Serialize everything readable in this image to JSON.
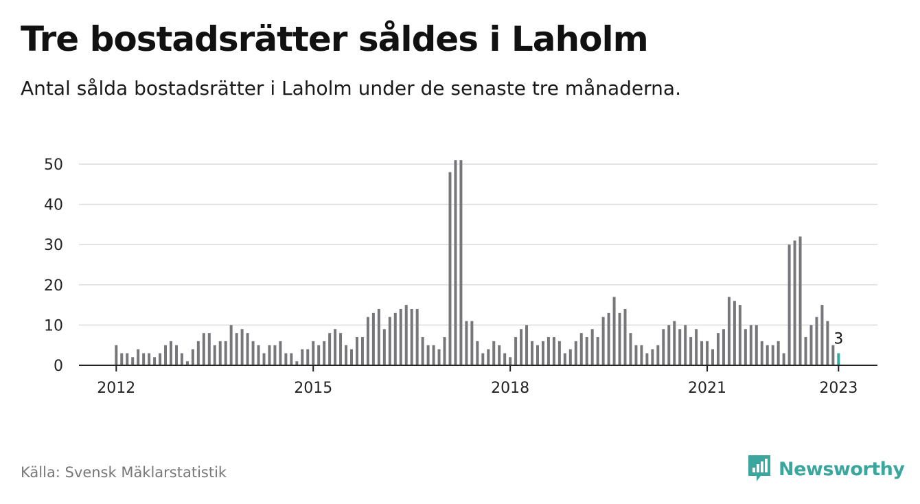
{
  "header": {
    "title": "Tre bostadsrätter såldes i Laholm",
    "subtitle": "Antal sålda bostadsrätter i Laholm under de senaste tre månaderna."
  },
  "footer": {
    "source": "Källa: Svensk Mäklarstatistik",
    "brand": "Newsworthy"
  },
  "colors": {
    "bar": "#77767b",
    "highlight": "#35a99e",
    "grid": "#dcdcdc",
    "axis": "#222222",
    "brand": "#3aa69e"
  },
  "icons": {
    "logo": "bar-chart-speech-bubble-icon"
  },
  "chart_data": {
    "type": "bar",
    "x_start": "2012-01",
    "x_labels": [
      "2012",
      "2015",
      "2018",
      "2021",
      "2023"
    ],
    "yticks": [
      0,
      10,
      20,
      30,
      40,
      50
    ],
    "ylim": [
      0,
      50
    ],
    "grid": true,
    "highlight_last": true,
    "last_value_label": "3",
    "values": [
      5,
      3,
      3,
      2,
      4,
      3,
      3,
      2,
      3,
      5,
      6,
      5,
      3,
      1,
      4,
      6,
      8,
      8,
      5,
      6,
      6,
      10,
      8,
      9,
      8,
      6,
      5,
      3,
      5,
      5,
      6,
      3,
      3,
      1,
      4,
      4,
      6,
      5,
      6,
      8,
      9,
      8,
      5,
      4,
      7,
      7,
      12,
      13,
      14,
      9,
      12,
      13,
      14,
      15,
      14,
      14,
      7,
      5,
      5,
      4,
      7,
      48,
      51,
      51,
      11,
      11,
      6,
      3,
      4,
      6,
      5,
      3,
      2,
      7,
      9,
      10,
      6,
      5,
      6,
      7,
      7,
      6,
      3,
      4,
      6,
      8,
      7,
      9,
      7,
      12,
      13,
      17,
      13,
      14,
      8,
      5,
      5,
      3,
      4,
      5,
      9,
      10,
      11,
      9,
      10,
      7,
      9,
      6,
      6,
      4,
      8,
      9,
      17,
      16,
      15,
      9,
      10,
      10,
      6,
      5,
      5,
      6,
      3,
      30,
      31,
      32,
      7,
      10,
      12,
      15,
      11,
      5,
      3
    ]
  }
}
